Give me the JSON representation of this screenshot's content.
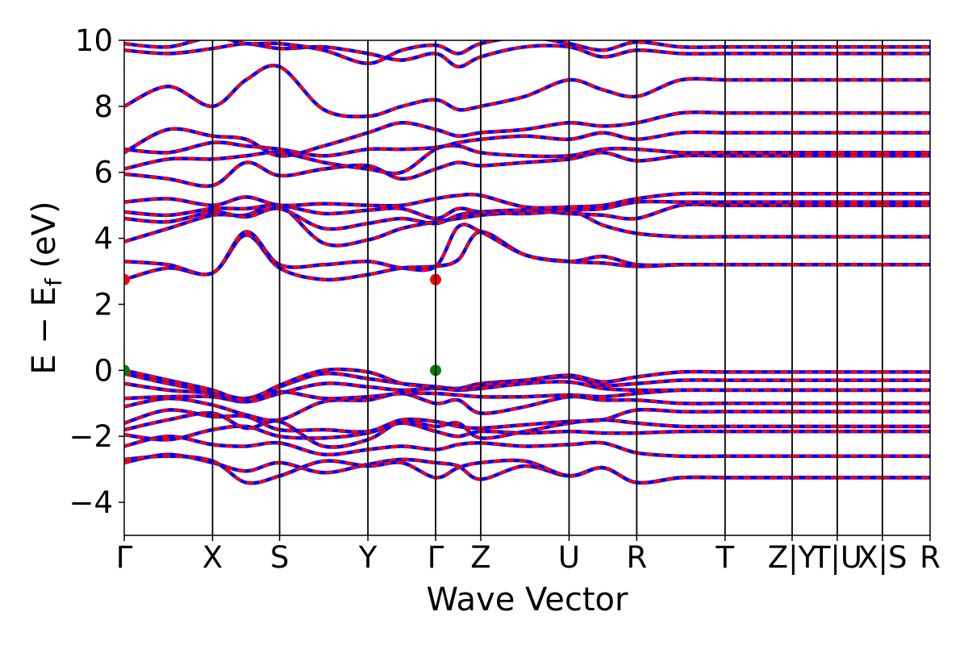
{
  "chart_data": {
    "type": "line",
    "title": "",
    "xlabel": "Wave Vector",
    "ylabel": "E − E",
    "ylabel_subscript": "f",
    "ylabel_unit": "(eV)",
    "ylim": [
      -5,
      10
    ],
    "yticks": [
      -4,
      -2,
      0,
      2,
      4,
      6,
      8,
      10
    ],
    "ytick_labels": [
      "−4",
      "−2",
      "0",
      "2",
      "4",
      "6",
      "8",
      "10"
    ],
    "xlim": [
      0,
      12.5
    ],
    "kpoints": [
      {
        "x": 0.0,
        "label": "Γ"
      },
      {
        "x": 1.37,
        "label": "X"
      },
      {
        "x": 2.41,
        "label": "S"
      },
      {
        "x": 3.78,
        "label": "Y"
      },
      {
        "x": 4.83,
        "label": "Γ"
      },
      {
        "x": 5.53,
        "label": "Z"
      },
      {
        "x": 6.9,
        "label": "U"
      },
      {
        "x": 7.95,
        "label": "R"
      },
      {
        "x": 9.32,
        "label": "T"
      },
      {
        "x": 10.36,
        "label": "Z|Y"
      },
      {
        "x": 11.06,
        "label": "T|U"
      },
      {
        "x": 11.76,
        "label": "X|S"
      },
      {
        "x": 12.5,
        "label": "R"
      }
    ],
    "segments": [
      [
        0,
        10.36
      ],
      [
        10.36,
        11.06
      ],
      [
        11.06,
        11.76
      ],
      [
        11.76,
        12.5
      ]
    ],
    "series_styles": [
      {
        "color": "#0000ff",
        "dash": "none",
        "width": 4.5
      },
      {
        "color": "#ff0000",
        "dash": "9,7",
        "width": 3.5
      }
    ],
    "band_edge_markers": [
      {
        "x": 0.0,
        "y": 2.75,
        "color": "#ff0000",
        "kind": "CBM"
      },
      {
        "x": 4.83,
        "y": 2.75,
        "color": "#ff0000",
        "kind": "CBM"
      },
      {
        "x": 0.0,
        "y": 0.0,
        "color": "#008000",
        "kind": "VBM"
      },
      {
        "x": 4.83,
        "y": 0.0,
        "color": "#008000",
        "kind": "VBM"
      }
    ],
    "bands": [
      [
        -2.8,
        -2.55,
        -2.8,
        -3.05,
        -2.8,
        -3.1,
        -2.85,
        -2.7,
        -2.8,
        -2.9,
        -3.3,
        -2.9,
        -3.2,
        -2.95,
        -3.4,
        -3.25
      ],
      [
        -2.7,
        -2.6,
        -2.75,
        -3.4,
        -3.2,
        -2.75,
        -2.9,
        -2.8,
        -3.25,
        -2.95,
        -2.8,
        -2.75,
        -3.2,
        -2.95,
        -3.4,
        -3.25
      ],
      [
        -2.3,
        -2.0,
        -2.25,
        -2.3,
        -2.2,
        -2.55,
        -2.4,
        -2.3,
        -2.4,
        -2.25,
        -2.2,
        -2.3,
        -2.25,
        -2.2,
        -2.5,
        -2.6
      ],
      [
        -1.95,
        -2.1,
        -1.8,
        -1.7,
        -2.0,
        -2.05,
        -1.9,
        -1.6,
        -1.85,
        -2.0,
        -1.85,
        -1.9,
        -1.85,
        -1.9,
        -1.9,
        -1.85
      ],
      [
        -1.8,
        -1.5,
        -1.3,
        -1.75,
        -1.55,
        -2.3,
        -2.1,
        -1.55,
        -1.7,
        -1.6,
        -2.05,
        -1.85,
        -1.6,
        -1.5,
        -1.6,
        -1.7
      ],
      [
        -1.6,
        -1.2,
        -1.4,
        -1.4,
        -1.8,
        -1.8,
        -1.85,
        -1.5,
        -1.55,
        -1.7,
        -1.75,
        -1.65,
        -1.55,
        -1.5,
        -1.2,
        -1.25
      ],
      [
        -1.1,
        -0.85,
        -1.05,
        -1.35,
        -1.5,
        -0.95,
        -0.9,
        -0.7,
        -1.0,
        -0.9,
        -1.3,
        -1.1,
        -0.8,
        -0.9,
        -0.9,
        -1.0
      ],
      [
        -0.85,
        -0.8,
        -0.8,
        -0.95,
        -0.65,
        -0.85,
        -0.8,
        -0.7,
        -0.7,
        -0.75,
        -0.8,
        -0.8,
        -0.75,
        -0.8,
        -0.7,
        -0.6
      ],
      [
        -0.4,
        -0.6,
        -0.7,
        -0.95,
        -0.7,
        -0.4,
        -0.5,
        -0.6,
        -0.55,
        -0.6,
        -0.55,
        -0.4,
        -0.35,
        -0.55,
        -0.6,
        -0.6
      ],
      [
        -0.1,
        -0.4,
        -0.65,
        -0.85,
        -0.5,
        -0.1,
        -0.25,
        -0.4,
        -0.5,
        -0.55,
        -0.4,
        -0.3,
        -0.2,
        -0.45,
        -0.4,
        -0.3
      ],
      [
        0.0,
        -0.3,
        -0.6,
        -0.9,
        -0.45,
        0.0,
        -0.05,
        -0.4,
        -0.5,
        -0.6,
        -0.45,
        -0.3,
        -0.15,
        -0.35,
        -0.2,
        -0.05
      ],
      [
        2.75,
        3.1,
        2.95,
        4.1,
        3.1,
        2.75,
        2.9,
        3.1,
        3.15,
        3.35,
        4.2,
        3.5,
        3.3,
        3.25,
        3.15,
        3.2
      ],
      [
        3.3,
        3.2,
        2.95,
        4.2,
        3.2,
        3.2,
        3.3,
        3.1,
        3.15,
        4.35,
        4.2,
        3.5,
        3.3,
        3.45,
        3.2,
        3.2
      ],
      [
        3.9,
        4.3,
        4.7,
        4.7,
        5.0,
        3.85,
        3.95,
        4.3,
        4.5,
        4.6,
        4.7,
        4.8,
        4.85,
        4.4,
        4.15,
        4.05
      ],
      [
        4.6,
        4.5,
        4.8,
        4.65,
        4.9,
        4.3,
        4.45,
        4.6,
        4.45,
        4.7,
        4.8,
        4.85,
        4.75,
        4.7,
        4.6,
        5.0
      ],
      [
        4.8,
        4.7,
        4.9,
        4.9,
        5.0,
        4.75,
        4.85,
        4.9,
        4.6,
        4.9,
        4.8,
        4.75,
        4.85,
        4.9,
        5.1,
        5.1
      ],
      [
        5.1,
        5.2,
        5.0,
        5.25,
        5.0,
        5.05,
        5.0,
        5.0,
        5.2,
        5.3,
        5.3,
        4.95,
        4.95,
        5.0,
        5.2,
        5.35
      ],
      [
        5.95,
        5.8,
        5.6,
        6.3,
        5.9,
        6.1,
        6.2,
        5.8,
        6.1,
        6.3,
        6.2,
        6.3,
        6.4,
        6.6,
        6.35,
        6.5
      ],
      [
        6.1,
        6.4,
        6.4,
        6.5,
        6.6,
        6.3,
        6.1,
        6.0,
        6.7,
        6.8,
        6.6,
        6.5,
        6.5,
        6.7,
        6.7,
        6.6
      ],
      [
        6.7,
        6.6,
        6.9,
        6.8,
        6.7,
        6.5,
        6.7,
        6.7,
        6.75,
        6.9,
        7.0,
        7.1,
        7.0,
        7.2,
        7.0,
        7.2
      ],
      [
        6.6,
        7.3,
        7.1,
        7.0,
        6.5,
        6.8,
        7.2,
        7.5,
        7.3,
        7.1,
        7.2,
        7.3,
        7.5,
        7.4,
        7.5,
        7.8
      ],
      [
        8.0,
        8.6,
        8.0,
        8.8,
        9.2,
        7.9,
        7.7,
        8.0,
        8.2,
        7.9,
        8.0,
        8.3,
        8.8,
        8.5,
        8.3,
        8.8
      ],
      [
        9.7,
        9.6,
        9.75,
        9.9,
        9.75,
        9.8,
        9.6,
        9.4,
        9.6,
        9.2,
        9.5,
        9.8,
        9.8,
        9.5,
        9.7,
        9.6
      ],
      [
        9.9,
        9.8,
        10.1,
        9.9,
        9.9,
        9.7,
        9.3,
        9.7,
        9.85,
        9.6,
        9.9,
        10.1,
        9.9,
        9.7,
        9.95,
        9.8
      ]
    ]
  }
}
